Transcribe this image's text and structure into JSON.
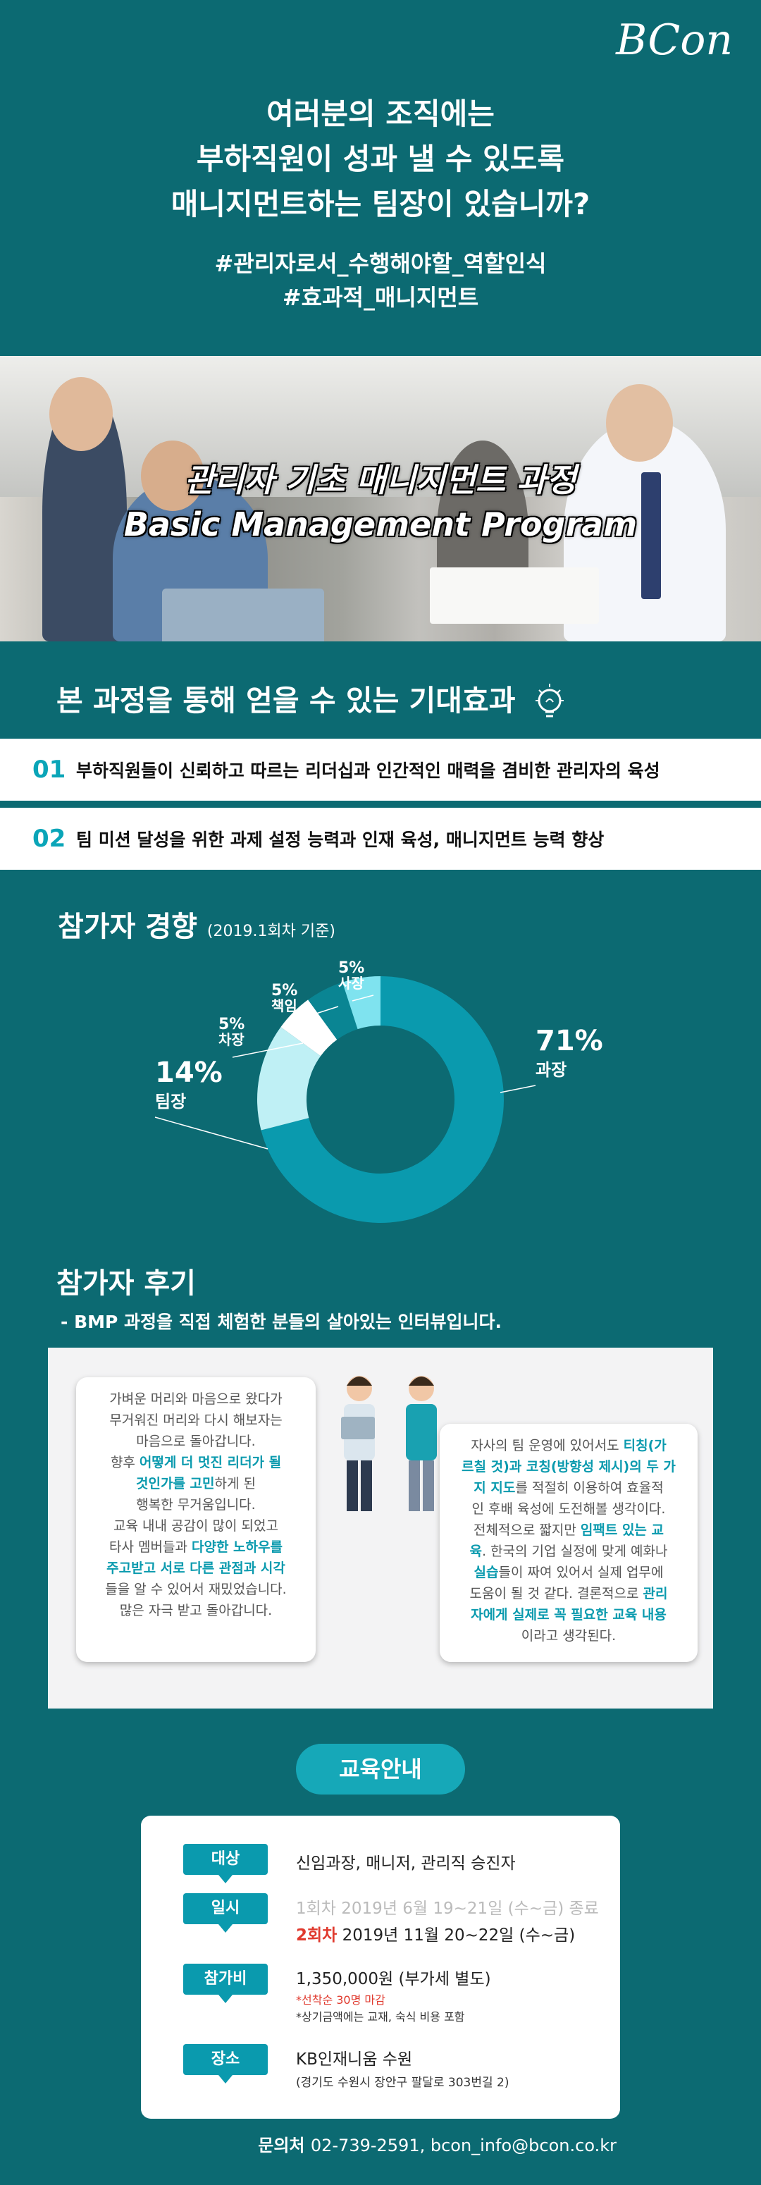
{
  "brand": {
    "logo": "BCon"
  },
  "intro": {
    "lines": [
      "여러분의 조직에는",
      "부하직원이 성과 낼 수 있도록",
      "매니지먼트하는 팀장이 있습니까?"
    ]
  },
  "hashtags": [
    "#관리자로서_수행해야할_역할인식",
    "#효과적_매니지먼트"
  ],
  "hero": {
    "title_ko": "관리자 기초 매니지먼트 과정",
    "title_en": "Basic Management Program"
  },
  "effects": {
    "heading": "본 과정을 통해 얻을 수 있는 기대효과",
    "items": [
      {
        "no": "01",
        "text": "부하직원들이 신뢰하고 따르는 리더십과 인간적인 매력을 겸비한 관리자의 육성"
      },
      {
        "no": "02",
        "text": "팀 미션 달성을 위한 과제 설정 능력과 인재 육성, 매니지먼트 능력 향상"
      }
    ]
  },
  "participants": {
    "heading": "참가자 경향",
    "note": "(2019.1회차 기준)"
  },
  "chart_data": {
    "type": "pie",
    "donut": true,
    "slices": [
      {
        "label": "과장",
        "value": 71,
        "pct": "71%",
        "color": "#0a9aae"
      },
      {
        "label": "팀장",
        "value": 14,
        "pct": "14%",
        "color": "#bff0f5"
      },
      {
        "label": "차장",
        "value": 5,
        "pct": "5%",
        "color": "#ffffff"
      },
      {
        "label": "책임",
        "value": 5,
        "pct": "5%",
        "color": "#0a8593"
      },
      {
        "label": "사장",
        "value": 5,
        "pct": "5%",
        "color": "#7fe3ef"
      }
    ]
  },
  "reviews": {
    "heading": "참가자 후기",
    "sub": "- BMP 과정을 직접 체험한 분들의 살아있는 인터뷰입니다.",
    "left": [
      [
        {
          "t": "가벼운 머리와 마음으로 왔다가"
        }
      ],
      [
        {
          "t": "무거워진 머리와 다시 해보자는"
        }
      ],
      [
        {
          "t": "마음으로 돌아갑니다."
        }
      ],
      [
        {
          "t": "향후 "
        },
        {
          "t": "어떻게 더 멋진 리더가 될",
          "h": 1
        }
      ],
      [
        {
          "t": "것인가를 고민",
          "h": 1
        },
        {
          "t": "하게 된"
        }
      ],
      [
        {
          "t": "행복한 무거움입니다."
        }
      ],
      [
        {
          "t": "교육 내내 공감이 많이 되었고"
        }
      ],
      [
        {
          "t": "타사 멤버들과 "
        },
        {
          "t": "다양한 노하우를",
          "h": 1
        }
      ],
      [
        {
          "t": "주고받고 서로 다른 관점과 시각",
          "h": 1
        }
      ],
      [
        {
          "t": "들을 알 수 있어서 재밌었습니다."
        }
      ],
      [
        {
          "t": "많은 자극 받고 돌아갑니다."
        }
      ]
    ],
    "right": [
      [
        {
          "t": "자사의 팀 운영에 있어서도 "
        },
        {
          "t": "티칭(가",
          "h": 1
        }
      ],
      [
        {
          "t": "르칠 것)과 코칭(방향성 제시)의 두 가",
          "h": 1
        }
      ],
      [
        {
          "t": "지 지도",
          "h": 1
        },
        {
          "t": "를 적절히 이용하여 효율적"
        }
      ],
      [
        {
          "t": "인 후배 육성에 도전해볼 생각이다."
        }
      ],
      [
        {
          "t": "전체적으로 짧지만 "
        },
        {
          "t": "임팩트 있는 교",
          "h": 1
        }
      ],
      [
        {
          "t": "육",
          "h": 1
        },
        {
          "t": ". 한국의 기업 실정에 맞게 예화나"
        }
      ],
      [
        {
          "t": "실습",
          "h": 1
        },
        {
          "t": "들이 짜여 있어서 실제 업무에"
        }
      ],
      [
        {
          "t": "도움이 될 것 같다. 결론적으로 "
        },
        {
          "t": "관리",
          "h": 1
        }
      ],
      [
        {
          "t": "자에게 실제로 꼭 필요한 교육 내용",
          "h": 1
        }
      ],
      [
        {
          "t": "이라고 생각된다."
        }
      ]
    ]
  },
  "edu": {
    "heading": "교육안내",
    "target": {
      "label": "대상",
      "value": "신임과장, 매니저, 관리직 승진자"
    },
    "date": {
      "label": "일시",
      "past_no": "1회차",
      "past": " 2019년 6월 19~21일 (수~금) 종료",
      "next_no": "2회차",
      "next": " 2019년 11월 20~22일 (수~금)"
    },
    "fee": {
      "label": "참가비",
      "value": "1,350,000원 (부가세 별도)",
      "note1": "*선착순 30명 마감",
      "note2": "*상기금액에는 교재, 숙식 비용 포함"
    },
    "place": {
      "label": "장소",
      "value": "KB인재니움 수원",
      "addr": "(경기도 수원시 장안구 팔달로 303번길 2)"
    }
  },
  "contact": {
    "label": "문의처",
    "value": "02-739-2591, bcon_info@bcon.co.kr"
  }
}
